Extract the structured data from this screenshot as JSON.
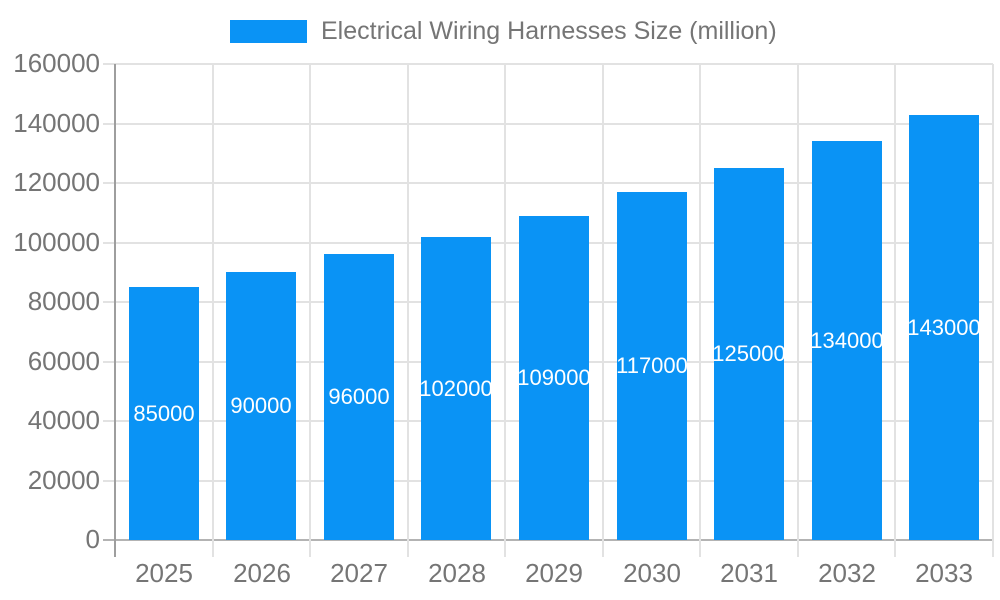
{
  "chart_data": {
    "type": "bar",
    "title": "",
    "legend": {
      "label": "Electrical Wiring Harnesses Size (million)",
      "position": "top"
    },
    "categories": [
      "2025",
      "2026",
      "2027",
      "2028",
      "2029",
      "2030",
      "2031",
      "2032",
      "2033"
    ],
    "series": [
      {
        "name": "Electrical Wiring Harnesses Size (million)",
        "values": [
          85000,
          90000,
          96000,
          102000,
          109000,
          117000,
          125000,
          134000,
          143000
        ]
      }
    ],
    "bar_labels": [
      "85000",
      "90000",
      "96000",
      "102000",
      "109000",
      "117000",
      "125000",
      "134000",
      "143000"
    ],
    "xlabel": "",
    "ylabel": "",
    "ylim": [
      0,
      160000
    ],
    "yticks": [
      0,
      20000,
      40000,
      60000,
      80000,
      100000,
      120000,
      140000,
      160000
    ],
    "grid": "horizontal and vertical category boundaries",
    "colors": {
      "bar": "#0a93f5",
      "bar_label": "#ffffff",
      "axis_text": "#757575",
      "grid_line": "#e2e2e2",
      "axis_line": "#9e9e9e",
      "baseline": "#b3b3b3",
      "background": "#ffffff"
    }
  }
}
